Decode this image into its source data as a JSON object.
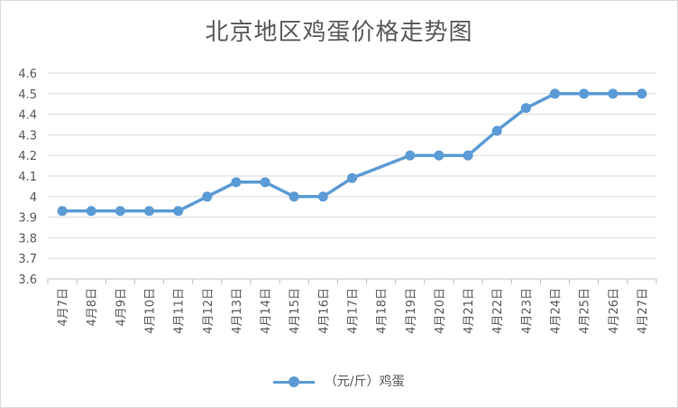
{
  "chart_data": {
    "type": "line",
    "title": "北京地区鸡蛋价格走势图",
    "categories": [
      "4月7日",
      "4月8日",
      "4月9日",
      "4月10日",
      "4月11日",
      "4月12日",
      "4月13日",
      "4月14日",
      "4月15日",
      "4月16日",
      "4月17日",
      "4月18日",
      "4月19日",
      "4月20日",
      "4月21日",
      "4月22日",
      "4月23日",
      "4月24日",
      "4月25日",
      "4月26日",
      "4月27日"
    ],
    "series": [
      {
        "name": "（元/斤）鸡蛋",
        "values": [
          3.93,
          3.93,
          3.93,
          3.93,
          3.93,
          4.0,
          4.07,
          4.07,
          4.0,
          4.0,
          4.09,
          null,
          4.2,
          4.2,
          4.2,
          4.32,
          4.43,
          4.5,
          4.5,
          4.5,
          4.5
        ]
      }
    ],
    "yticks": [
      "3.6",
      "3.7",
      "3.8",
      "3.9",
      "4",
      "4.1",
      "4.2",
      "4.3",
      "4.4",
      "4.5",
      "4.6"
    ],
    "ylim": [
      3.6,
      4.6
    ],
    "grid": true,
    "legend_position": "bottom",
    "color": "#5b9bd5"
  }
}
